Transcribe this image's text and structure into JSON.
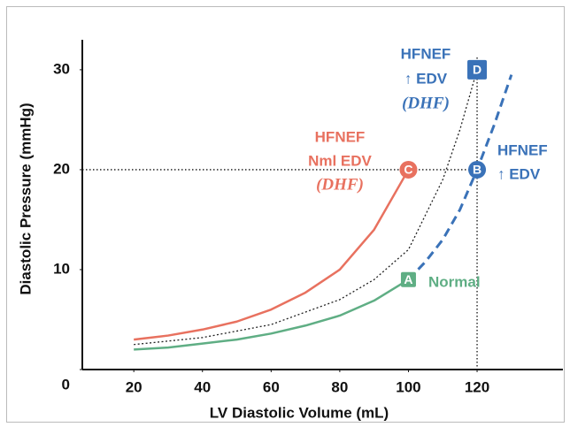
{
  "chart_data": {
    "type": "line",
    "x_label": "LV Diastolic Volume (mL)",
    "y_label": "Diastolic Pressure (mmHg)",
    "xlim": [
      5,
      145
    ],
    "xticks": [
      20,
      40,
      60,
      80,
      100,
      120
    ],
    "ylim": [
      0,
      33
    ],
    "yticks": [
      0,
      10,
      20,
      30
    ],
    "series": [
      {
        "color": "#5fae84",
        "style": "solid",
        "x": [
          20,
          30,
          40,
          50,
          60,
          70,
          80,
          90,
          100
        ],
        "values": [
          2,
          2.2,
          2.6,
          3,
          3.6,
          4.4,
          5.4,
          6.9,
          9
        ]
      },
      {
        "color": "#e8715f",
        "style": "solid",
        "x": [
          20,
          30,
          40,
          50,
          60,
          70,
          80,
          90,
          100
        ],
        "values": [
          3,
          3.4,
          4,
          4.8,
          6,
          7.7,
          10,
          14,
          20
        ]
      },
      {
        "color": "#222222",
        "style": "dotted",
        "x": [
          20,
          40,
          60,
          80,
          90,
          100,
          110,
          115,
          120
        ],
        "values": [
          2.5,
          3.2,
          4.5,
          7,
          9,
          12,
          19,
          24,
          30
        ]
      },
      {
        "color": "#3a72b8",
        "style": "dashed",
        "x": [
          100,
          105,
          110,
          115,
          120,
          125,
          130
        ],
        "values": [
          9,
          10.8,
          13,
          16,
          20,
          24.5,
          29.5
        ]
      }
    ],
    "points": [
      {
        "label": "A",
        "x": 100,
        "y": 9,
        "color": "#5fae84",
        "shape": "square"
      },
      {
        "label": "B",
        "x": 120,
        "y": 20,
        "color": "#3a72b8",
        "shape": "circle"
      },
      {
        "label": "C",
        "x": 100,
        "y": 20,
        "color": "#e8715f",
        "shape": "circle"
      },
      {
        "label": "D",
        "x": 120,
        "y": 30,
        "color": "#3a72b8",
        "shape": "square"
      }
    ],
    "annotations": [
      {
        "color": "#3a72b8",
        "lines": [
          "HFNEF",
          "↑ EDV",
          "(DHF)"
        ]
      },
      {
        "color": "#e8715f",
        "lines": [
          "HFNEF",
          "Nml EDV",
          "(DHF)"
        ]
      },
      {
        "color": "#3a72b8",
        "lines": [
          "HFNEF",
          "↑ EDV"
        ]
      },
      {
        "color": "#5fae84",
        "lines": [
          "Normal"
        ]
      }
    ]
  }
}
